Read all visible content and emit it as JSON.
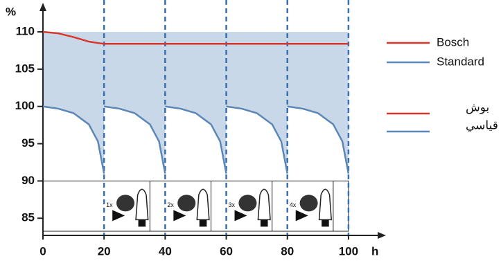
{
  "chart_data": {
    "type": "line",
    "y_label": "%",
    "x_label": "h",
    "xlim": [
      0,
      110
    ],
    "ylim": [
      82.7,
      112
    ],
    "xticks": [
      0,
      20,
      40,
      60,
      80,
      100
    ],
    "yticks": [
      85,
      90,
      95,
      100,
      105,
      110
    ],
    "series": [
      {
        "name": "Bosch",
        "name_ar": "بوش",
        "color": "#d9362b",
        "x": [
          0,
          5,
          10,
          15,
          18,
          20,
          100
        ],
        "values": [
          110,
          109.8,
          109.3,
          108.7,
          108.5,
          108.4,
          108.4
        ]
      },
      {
        "name": "Standard",
        "name_ar": "قياسي",
        "color": "#5b86b5",
        "x": [
          0,
          5,
          10,
          15,
          18,
          20,
          20,
          20,
          25,
          30,
          35,
          38,
          40,
          40,
          40,
          45,
          50,
          55,
          58,
          60,
          60,
          60,
          65,
          70,
          75,
          78,
          80,
          80,
          80,
          85,
          90,
          95,
          98,
          100
        ],
        "values": [
          100,
          99.7,
          99.1,
          97.6,
          95.3,
          91,
          null,
          100,
          99.7,
          99.1,
          97.6,
          95.3,
          91,
          null,
          100,
          99.7,
          99.1,
          97.6,
          95.3,
          91,
          null,
          100,
          99.7,
          99.1,
          97.6,
          95.3,
          91,
          null,
          100,
          99.7,
          99.1,
          97.6,
          95.3,
          91
        ]
      }
    ],
    "shade_top": 110,
    "shade_color": "#c8d8e8",
    "period_lines_x": [
      20,
      40,
      60,
      80,
      100
    ],
    "replacements": [
      {
        "x": 20,
        "label": "1x"
      },
      {
        "x": 40,
        "label": "2x"
      },
      {
        "x": 60,
        "label": "3x"
      },
      {
        "x": 80,
        "label": "4x"
      }
    ]
  }
}
